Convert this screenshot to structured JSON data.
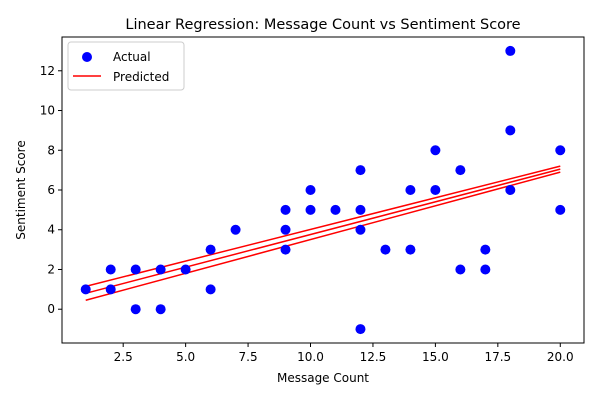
{
  "chart_data": {
    "type": "scatter",
    "title": "Linear Regression: Message Count vs Sentiment Score",
    "xlabel": "Message Count",
    "ylabel": "Sentiment Score",
    "xlim": [
      0.05,
      20.95
    ],
    "ylim": [
      -1.7,
      13.7
    ],
    "xticks": [
      2.5,
      5.0,
      7.5,
      10.0,
      12.5,
      15.0,
      17.5,
      20.0
    ],
    "xtick_labels": [
      "2.5",
      "5.0",
      "7.5",
      "10.0",
      "12.5",
      "15.0",
      "17.5",
      "20.0"
    ],
    "yticks": [
      0,
      2,
      4,
      6,
      8,
      10,
      12
    ],
    "ytick_labels": [
      "0",
      "2",
      "4",
      "6",
      "8",
      "10",
      "12"
    ],
    "grid": false,
    "legend_position": "top-left",
    "series": [
      {
        "name": "Actual",
        "kind": "scatter",
        "color": "#0000ff",
        "points": [
          [
            1,
            1
          ],
          [
            2,
            2
          ],
          [
            2,
            1
          ],
          [
            3,
            2
          ],
          [
            3,
            0
          ],
          [
            4,
            2
          ],
          [
            4,
            0
          ],
          [
            5,
            2
          ],
          [
            6,
            3
          ],
          [
            6,
            1
          ],
          [
            7,
            4
          ],
          [
            9,
            5
          ],
          [
            9,
            4
          ],
          [
            9,
            3
          ],
          [
            10,
            6
          ],
          [
            10,
            5
          ],
          [
            11,
            5
          ],
          [
            12,
            7
          ],
          [
            12,
            5
          ],
          [
            12,
            4
          ],
          [
            12,
            -1
          ],
          [
            13,
            3
          ],
          [
            14,
            6
          ],
          [
            14,
            3
          ],
          [
            15,
            8
          ],
          [
            15,
            6
          ],
          [
            16,
            7
          ],
          [
            16,
            2
          ],
          [
            17,
            3
          ],
          [
            17,
            2
          ],
          [
            18,
            13
          ],
          [
            18,
            9
          ],
          [
            18,
            6
          ],
          [
            20,
            8
          ],
          [
            20,
            5
          ]
        ]
      },
      {
        "name": "Predicted",
        "kind": "line",
        "color": "#ff0000",
        "lines": [
          [
            [
              1,
              1.15
            ],
            [
              20,
              7.2
            ]
          ],
          [
            [
              1,
              0.8
            ],
            [
              20,
              7.05
            ]
          ],
          [
            [
              1,
              0.45
            ],
            [
              20,
              6.9
            ]
          ]
        ]
      }
    ]
  }
}
